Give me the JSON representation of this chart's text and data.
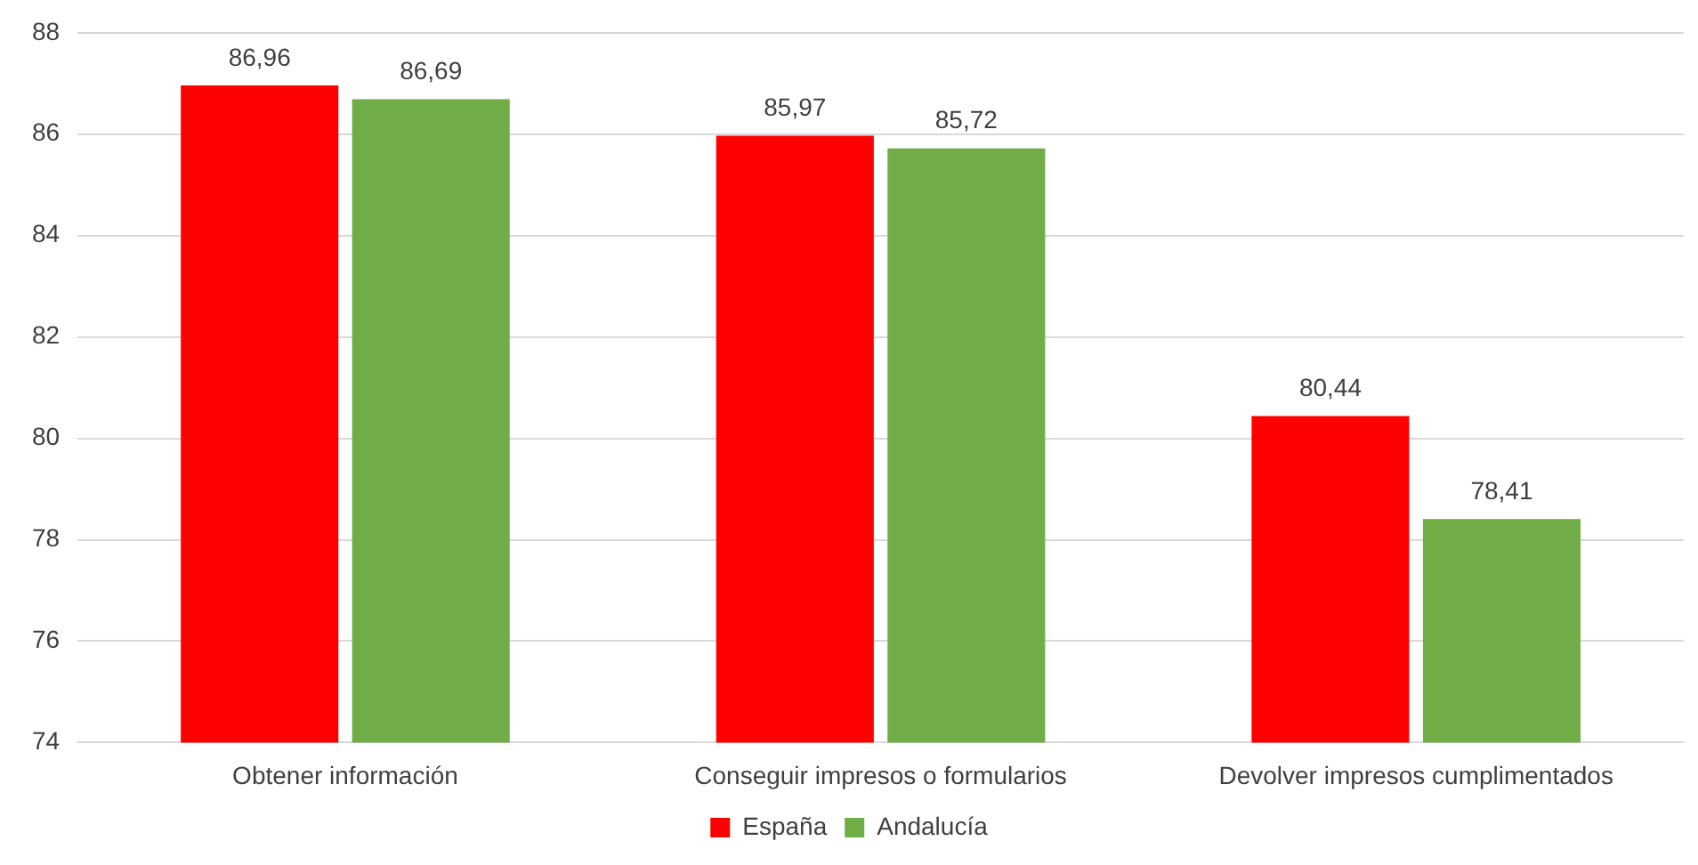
{
  "chart_data": {
    "type": "bar",
    "categories": [
      "Obtener información",
      "Conseguir impresos o formularios",
      "Devolver impresos cumplimentados"
    ],
    "series": [
      {
        "name": "España",
        "color": "#ff0000",
        "values": [
          86.96,
          85.97,
          80.44
        ],
        "value_labels": [
          "86,96",
          "85,97",
          "80,44"
        ]
      },
      {
        "name": "Andalucía",
        "color": "#70ad47",
        "values": [
          86.69,
          85.72,
          78.41
        ],
        "value_labels": [
          "86,69",
          "85,72",
          "78,41"
        ]
      }
    ],
    "ylim": [
      74,
      88
    ],
    "yticks": [
      74,
      76,
      78,
      80,
      82,
      84,
      86,
      88
    ],
    "grid": "y",
    "legend": "bottom"
  }
}
